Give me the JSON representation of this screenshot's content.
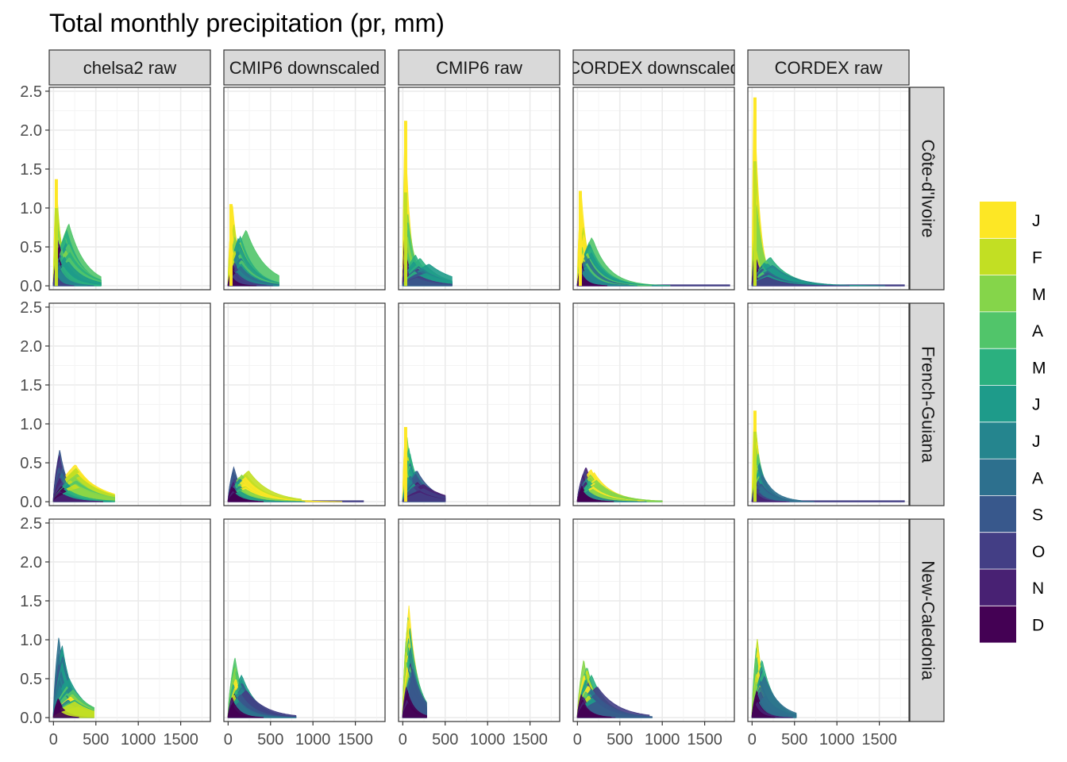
{
  "title": "Total monthly precipitation (pr, mm)",
  "chart_data": {
    "type": "area",
    "title": "Total monthly precipitation (pr, mm)",
    "xlabel": "",
    "ylabel": "",
    "xlim": [
      -50,
      1850
    ],
    "ylim": [
      -0.05,
      2.55
    ],
    "x_ticks": [
      0,
      500,
      1000,
      1500
    ],
    "x_tick_labels": [
      "0",
      "500",
      "1000",
      "1500"
    ],
    "y_ticks": [
      0.0,
      0.5,
      1.0,
      1.5,
      2.0,
      2.5
    ],
    "y_tick_labels": [
      "0.0",
      "0.5",
      "1.0",
      "1.5",
      "2.0",
      "2.5"
    ],
    "grid": true,
    "columns": [
      "chelsa2 raw",
      "CMIP6 downscaled",
      "CMIP6 raw",
      "CORDEX downscaled",
      "CORDEX raw"
    ],
    "rows": [
      "Côte-d'Ivoire",
      "French-Guiana",
      "New-Caledonia"
    ],
    "legend": {
      "position": "right",
      "labels": [
        "J",
        "F",
        "M",
        "A",
        "M",
        "J",
        "J",
        "A",
        "S",
        "O",
        "N",
        "D"
      ],
      "colors": [
        "#FDE725",
        "#C2DF23",
        "#85D54A",
        "#51C56A",
        "#2BB07F",
        "#1E9B8A",
        "#25858E",
        "#2D708E",
        "#38588C",
        "#433E85",
        "#482173",
        "#440154"
      ]
    },
    "panels": [
      [
        {
          "peaks": [
            [
              30,
              1.37,
              0
            ],
            [
              40,
              1.0,
              1
            ],
            [
              150,
              0.8,
              3
            ],
            [
              130,
              0.7,
              4
            ],
            [
              150,
              0.55,
              5
            ],
            [
              80,
              0.4,
              7
            ],
            [
              60,
              0.6,
              11
            ],
            [
              30,
              0.35,
              10
            ]
          ],
          "max_x": 560
        },
        {
          "peaks": [
            [
              40,
              1.05,
              0
            ],
            [
              70,
              0.8,
              1
            ],
            [
              180,
              0.72,
              3
            ],
            [
              160,
              0.62,
              5
            ],
            [
              130,
              0.45,
              7
            ],
            [
              80,
              0.3,
              9
            ],
            [
              50,
              0.25,
              11
            ]
          ],
          "max_x": 600
        },
        {
          "peaks": [
            [
              30,
              2.12,
              0
            ],
            [
              40,
              1.2,
              1
            ],
            [
              50,
              0.95,
              2
            ],
            [
              160,
              0.4,
              4
            ],
            [
              250,
              0.28,
              6
            ],
            [
              200,
              0.22,
              8
            ],
            [
              35,
              0.8,
              11
            ],
            [
              30,
              0.45,
              10
            ]
          ],
          "max_x": 580
        },
        {
          "peaks": [
            [
              40,
              1.22,
              0
            ],
            [
              60,
              0.75,
              1
            ],
            [
              150,
              0.63,
              3
            ],
            [
              130,
              0.55,
              5
            ],
            [
              100,
              0.4,
              7
            ],
            [
              60,
              0.3,
              9
            ],
            [
              45,
              0.25,
              11
            ]
          ],
          "max_x": 1800
        },
        {
          "peaks": [
            [
              30,
              2.42,
              0
            ],
            [
              40,
              1.6,
              1
            ],
            [
              50,
              1.0,
              2
            ],
            [
              170,
              0.37,
              4
            ],
            [
              200,
              0.3,
              6
            ],
            [
              150,
              0.25,
              8
            ],
            [
              40,
              0.45,
              11
            ],
            [
              35,
              0.35,
              10
            ]
          ],
          "max_x": 1800
        }
      ],
      [
        {
          "peaks": [
            [
              60,
              0.67,
              9
            ],
            [
              90,
              0.55,
              8
            ],
            [
              280,
              0.48,
              0
            ],
            [
              260,
              0.4,
              2
            ],
            [
              150,
              0.25,
              5
            ],
            [
              100,
              0.2,
              11
            ]
          ],
          "max_x": 720
        },
        {
          "peaks": [
            [
              80,
              0.45,
              9
            ],
            [
              200,
              0.4,
              0
            ],
            [
              180,
              0.35,
              2
            ],
            [
              120,
              0.3,
              5
            ],
            [
              60,
              0.2,
              11
            ]
          ],
          "max_x": 1600
        },
        {
          "peaks": [
            [
              30,
              0.96,
              0
            ],
            [
              50,
              0.85,
              2
            ],
            [
              80,
              0.7,
              4
            ],
            [
              120,
              0.5,
              6
            ],
            [
              150,
              0.4,
              8
            ],
            [
              200,
              0.25,
              9
            ]
          ],
          "max_x": 500
        },
        {
          "peaks": [
            [
              80,
              0.45,
              9
            ],
            [
              200,
              0.42,
              0
            ],
            [
              180,
              0.35,
              2
            ],
            [
              120,
              0.3,
              5
            ],
            [
              60,
              0.2,
              11
            ]
          ],
          "max_x": 1000
        },
        {
          "peaks": [
            [
              30,
              1.17,
              0
            ],
            [
              40,
              0.9,
              1
            ],
            [
              60,
              0.7,
              3
            ],
            [
              80,
              0.5,
              5
            ],
            [
              100,
              0.35,
              7
            ],
            [
              60,
              0.25,
              9
            ]
          ],
          "max_x": 1800
        }
      ],
      [
        {
          "peaks": [
            [
              80,
              1.05,
              7
            ],
            [
              100,
              0.9,
              6
            ],
            [
              150,
              0.5,
              5
            ],
            [
              200,
              0.4,
              3
            ],
            [
              250,
              0.3,
              1
            ],
            [
              60,
              0.25,
              11
            ]
          ],
          "max_x": 480
        },
        {
          "peaks": [
            [
              80,
              0.78,
              3
            ],
            [
              100,
              0.65,
              1
            ],
            [
              130,
              0.55,
              5
            ],
            [
              170,
              0.45,
              8
            ],
            [
              60,
              0.3,
              11
            ]
          ],
          "max_x": 800
        },
        {
          "peaks": [
            [
              60,
              1.44,
              0
            ],
            [
              50,
              1.3,
              2
            ],
            [
              70,
              1.15,
              4
            ],
            [
              80,
              0.9,
              6
            ],
            [
              90,
              0.7,
              8
            ],
            [
              50,
              0.4,
              11
            ]
          ],
          "max_x": 280
        },
        {
          "peaks": [
            [
              90,
              0.75,
              3
            ],
            [
              110,
              0.62,
              1
            ],
            [
              140,
              0.55,
              5
            ],
            [
              180,
              0.45,
              8
            ],
            [
              60,
              0.3,
              11
            ]
          ],
          "max_x": 880
        },
        {
          "peaks": [
            [
              60,
              1.02,
              2
            ],
            [
              80,
              0.9,
              0
            ],
            [
              100,
              0.75,
              5
            ],
            [
              130,
              0.6,
              7
            ],
            [
              50,
              0.35,
              11
            ]
          ],
          "max_x": 520
        }
      ]
    ]
  }
}
